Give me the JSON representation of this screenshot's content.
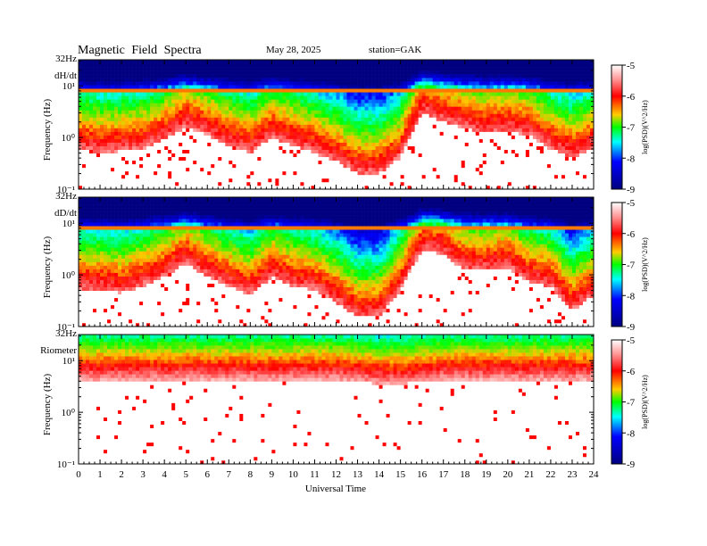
{
  "header": {
    "title": "Magnetic Field Spectra",
    "date": "May 28, 2025",
    "station": "station=GAK"
  },
  "colorbar": {
    "ticks": [
      "-5",
      "-6",
      "-7",
      "-8",
      "-9"
    ],
    "label": "log(PSD)(V^2/Hz)",
    "colors": [
      "#ffffff",
      "#ff8080",
      "#ff0000",
      "#ffff00",
      "#00ff00",
      "#00ffff",
      "#0000ff",
      "#000080"
    ]
  },
  "x_axis": {
    "label": "Universal Time",
    "ticks": [
      "0",
      "1",
      "2",
      "3",
      "4",
      "5",
      "6",
      "7",
      "8",
      "9",
      "10",
      "11",
      "12",
      "13",
      "14",
      "15",
      "16",
      "17",
      "18",
      "19",
      "20",
      "21",
      "22",
      "23",
      "24"
    ]
  },
  "chart_data": [
    {
      "type": "heatmap",
      "panel": "dH/dt",
      "ylabel": "Frequency (Hz)",
      "top_label": "32Hz",
      "ytick_labels": [
        "10¹",
        "10⁰",
        "10⁻¹"
      ],
      "xlim": [
        0,
        24
      ],
      "ylim_hz": [
        0.1,
        32
      ],
      "zlim": [
        -9,
        -5
      ],
      "cutoff_hz_by_hour": [
        0.6,
        0.5,
        0.55,
        0.6,
        0.9,
        1.6,
        1.1,
        0.7,
        0.5,
        1.0,
        0.7,
        0.5,
        0.35,
        0.2,
        0.2,
        0.4,
        3.0,
        2.0,
        1.5,
        1.2,
        1.3,
        1.1,
        0.6,
        0.4,
        0.6
      ]
    },
    {
      "type": "heatmap",
      "panel": "dD/dt",
      "ylabel": "Frequency (Hz)",
      "top_label": "32Hz",
      "ytick_labels": [
        "10¹",
        "10⁰",
        "10⁻¹"
      ],
      "xlim": [
        0,
        24
      ],
      "ylim_hz": [
        0.1,
        32
      ],
      "zlim": [
        -9,
        -5
      ],
      "cutoff_hz_by_hour": [
        0.5,
        0.5,
        0.45,
        0.6,
        0.9,
        1.7,
        0.9,
        0.6,
        0.4,
        0.9,
        0.6,
        0.5,
        0.3,
        0.15,
        0.15,
        0.5,
        3.0,
        2.5,
        1.2,
        1.2,
        1.4,
        0.7,
        0.6,
        0.2,
        0.4
      ]
    },
    {
      "type": "heatmap",
      "panel": "Riometer",
      "ylabel": "Frequency (Hz)",
      "top_label": "32Hz",
      "ytick_labels": [
        "10¹",
        "10⁰",
        "10⁻¹"
      ],
      "xlim": [
        0,
        24
      ],
      "ylim_hz": [
        0.1,
        32
      ],
      "zlim": [
        -9,
        -5
      ],
      "cutoff_hz_by_hour": [
        6,
        6,
        6,
        6,
        6,
        6,
        6,
        6,
        6,
        6,
        6,
        6,
        6,
        5.5,
        5,
        5,
        5.5,
        6,
        6,
        6,
        6,
        6,
        6,
        6,
        6
      ]
    }
  ]
}
